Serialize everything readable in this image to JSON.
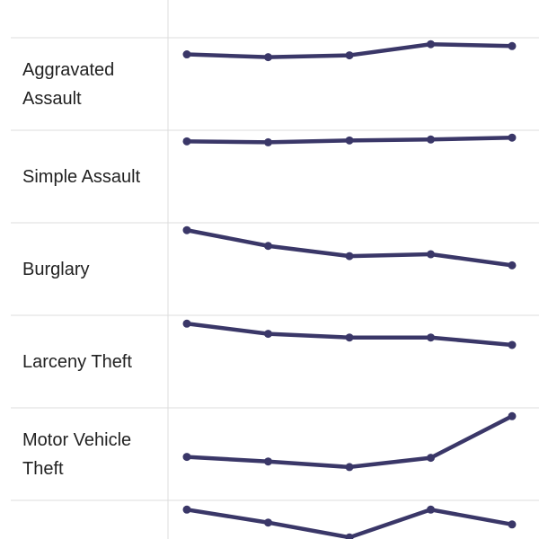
{
  "chart_data": {
    "type": "line",
    "ylim": [
      0,
      100
    ],
    "color": "#3a3768",
    "rows": [
      {
        "label": "Aggravated Assault",
        "values": [
          82,
          79,
          81,
          93,
          91
        ]
      },
      {
        "label": "Simple Assault",
        "values": [
          88,
          87,
          89,
          90,
          92
        ]
      },
      {
        "label": "Burglary",
        "values": [
          92,
          75,
          64,
          66,
          54
        ]
      },
      {
        "label": "Larceny Theft",
        "values": [
          91,
          80,
          76,
          76,
          68
        ]
      },
      {
        "label": "Motor Vehicle Theft",
        "values": [
          47,
          42,
          36,
          46,
          91
        ]
      },
      {
        "values": [
          90,
          76,
          60,
          90,
          74
        ]
      }
    ]
  }
}
